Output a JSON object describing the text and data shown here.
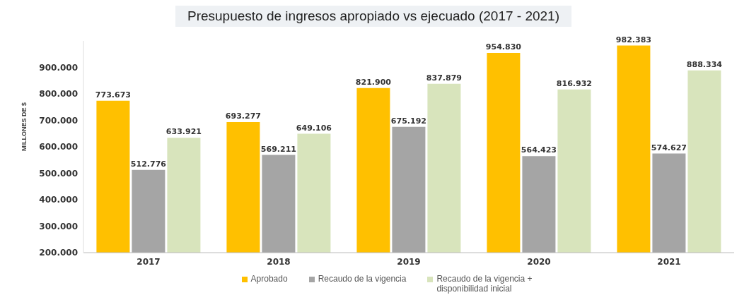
{
  "chart_data": {
    "type": "bar",
    "title": "Presupuesto de ingresos apropiado vs ejecuado (2017 - 2021)",
    "ylabel": "MILLONES DE $",
    "categories": [
      "2017",
      "2018",
      "2019",
      "2020",
      "2021"
    ],
    "series": [
      {
        "name": "Aprobado",
        "color": "#ffc000",
        "values": [
          773673,
          693277,
          821900,
          954830,
          982383
        ],
        "value_labels": [
          "773.673",
          "693.277",
          "821.900",
          "954.830",
          "982.383"
        ]
      },
      {
        "name": "Recaudo de la vigencia",
        "color": "#a5a5a5",
        "values": [
          512776,
          569211,
          675192,
          564423,
          574627
        ],
        "value_labels": [
          "512.776",
          "569.211",
          "675.192",
          "564.423",
          "574.627"
        ]
      },
      {
        "name": "Recaudo de la vigencia + disponibilidad inicial",
        "color": "#d8e4bc",
        "values": [
          633921,
          649106,
          837879,
          816932,
          888334
        ],
        "value_labels": [
          "633.921",
          "649.106",
          "837.879",
          "816.932",
          "888.334"
        ]
      }
    ],
    "ylim": [
      200000,
      1000000
    ],
    "yticks": [
      {
        "value": 200000,
        "label": "200.000"
      },
      {
        "value": 300000,
        "label": "300.000"
      },
      {
        "value": 400000,
        "label": "400.000"
      },
      {
        "value": 500000,
        "label": "500.000"
      },
      {
        "value": 600000,
        "label": "600.000"
      },
      {
        "value": 700000,
        "label": "700.000"
      },
      {
        "value": 800000,
        "label": "800.000"
      },
      {
        "value": 900000,
        "label": "900.000"
      }
    ],
    "grid": false,
    "legend": "bottom"
  }
}
